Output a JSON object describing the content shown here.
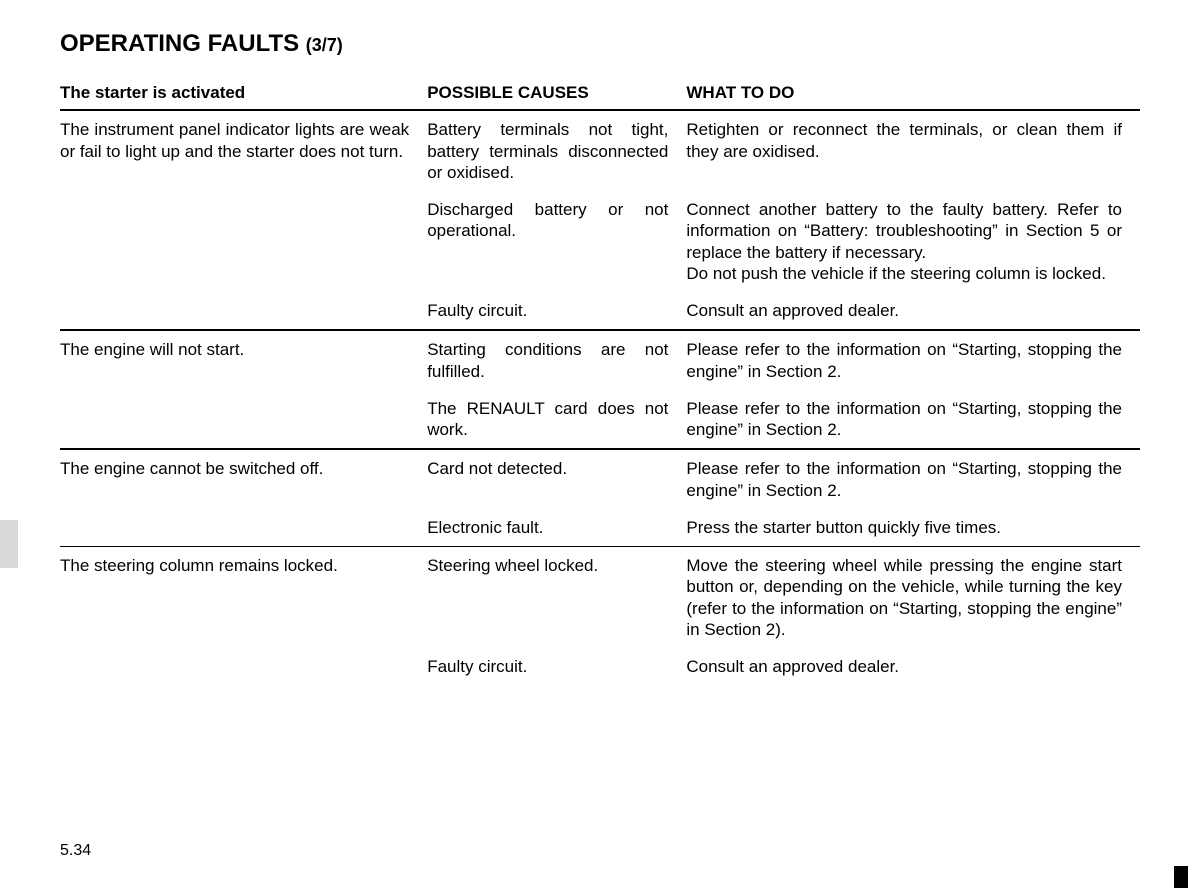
{
  "title_main": "OPERATING FAULTS",
  "title_sub": "(3/7)",
  "headers": {
    "c1": "The starter is activated",
    "c2": "POSSIBLE CAUSES",
    "c3": "WHAT TO DO"
  },
  "rows": [
    {
      "symptom": "The instrument panel indicator lights are weak or fail to light up and the starter does not turn.",
      "cause": "Battery terminals not tight, battery terminals disconnected or oxidised.",
      "action": "Retighten or reconnect the terminals, or clean them if they are oxidised.",
      "border": ""
    },
    {
      "symptom": "",
      "cause": "Discharged battery or not operational.",
      "action": "Connect another battery to the faulty battery. Refer to information on “Battery: troubleshooting” in Section 5 or replace the battery if necessary.\nDo not push the vehicle if the steering column is locked.",
      "border": ""
    },
    {
      "symptom": "",
      "cause": "Faulty circuit.",
      "action": "Consult an approved dealer.",
      "border": "thick"
    },
    {
      "symptom": "The engine will not start.",
      "cause": "Starting conditions are not fulfilled.",
      "action": "Please refer to the information on “Starting, stopping the engine” in Section 2.",
      "border": ""
    },
    {
      "symptom": "",
      "cause": "The RENAULT card does not work.",
      "action": "Please refer to the information on “Starting, stopping the engine” in Section 2.",
      "border": "thick"
    },
    {
      "symptom": "The engine cannot be switched off.",
      "cause": "Card not detected.",
      "action": "Please refer to the information on “Starting, stopping the engine” in Section 2.",
      "border": ""
    },
    {
      "symptom": "",
      "cause": "Electronic fault.",
      "action": "Press the starter button quickly five times.",
      "border": "thin"
    },
    {
      "symptom": "The steering column remains locked.",
      "cause": "Steering wheel locked.",
      "action": "Move the steering wheel while pressing the engine start button or, depending on the vehicle, while turning the key (refer to the information on “Starting, stopping the engine” in Section 2).",
      "border": ""
    },
    {
      "symptom": "",
      "cause": "Faulty circuit.",
      "action": "Consult an approved dealer.",
      "border": ""
    }
  ],
  "page_number": "5.34"
}
